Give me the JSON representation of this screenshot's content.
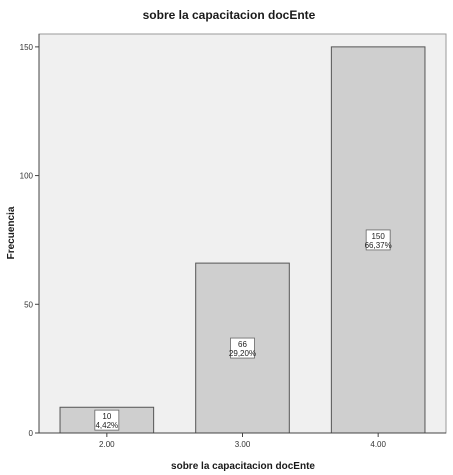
{
  "chart_data": {
    "type": "bar",
    "title": "sobre la capacitacion docEnte",
    "xlabel": "sobre la capacitacion docEnte",
    "ylabel": "Frecuencia",
    "categories": [
      "2.00",
      "3.00",
      "4.00"
    ],
    "values": [
      10,
      66,
      150
    ],
    "data_labels": [
      {
        "count": "10",
        "percent": "4,42%"
      },
      {
        "count": "66",
        "percent": "29,20%"
      },
      {
        "count": "150",
        "percent": "66,37%"
      }
    ],
    "ylim": [
      0,
      155
    ],
    "yticks": [
      "0",
      "50",
      "100",
      "150"
    ],
    "grid": false,
    "legend": "none",
    "colors": {
      "bar_fill": "#cfcfcf",
      "bar_stroke": "#555555",
      "plot_background": "#f0f0f0",
      "axis": "#444444"
    }
  }
}
